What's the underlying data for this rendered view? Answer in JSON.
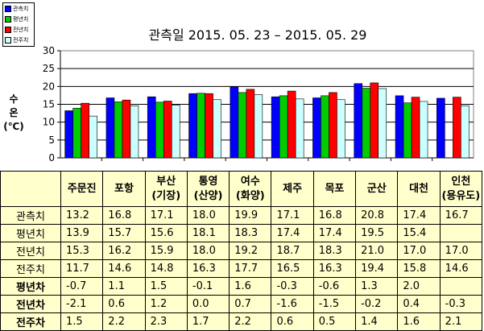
{
  "chart_data": {
    "type": "bar",
    "title": "관측일 2015. 05. 23 – 2015. 05. 29",
    "ylabel_lines": [
      "수",
      "온",
      "(℃)"
    ],
    "ylim": [
      0,
      30
    ],
    "yticks": [
      0,
      5,
      10,
      15,
      20,
      25,
      30
    ],
    "grid": true,
    "legend_position": "top-left",
    "categories": [
      [
        "주문진"
      ],
      [
        "포항"
      ],
      [
        "부산",
        "(기장)"
      ],
      [
        "통영",
        "(산양)"
      ],
      [
        "여수",
        "(화양)"
      ],
      [
        "제주"
      ],
      [
        "목포"
      ],
      [
        "군산"
      ],
      [
        "대천"
      ],
      [
        "인천",
        "(용유도)"
      ]
    ],
    "series": [
      {
        "name": "관측치",
        "color": "#0000ff",
        "values": [
          13.2,
          16.8,
          17.1,
          18.0,
          19.9,
          17.1,
          16.8,
          20.8,
          17.4,
          16.7
        ]
      },
      {
        "name": "평년치",
        "color": "#00cc00",
        "values": [
          13.9,
          15.7,
          15.6,
          18.1,
          18.3,
          17.4,
          17.4,
          19.5,
          15.4,
          null
        ]
      },
      {
        "name": "전년치",
        "color": "#ff0000",
        "values": [
          15.3,
          16.2,
          15.9,
          18.0,
          19.2,
          18.7,
          18.3,
          21.0,
          17.0,
          17.0
        ]
      },
      {
        "name": "전주치",
        "color": "#ccffff",
        "values": [
          11.7,
          14.6,
          14.8,
          16.3,
          17.7,
          16.5,
          16.3,
          19.4,
          15.8,
          14.6
        ]
      }
    ],
    "table": {
      "value_rows": [
        {
          "label": "관측치",
          "cells": [
            "13.2",
            "16.8",
            "17.1",
            "18.0",
            "19.9",
            "17.1",
            "16.8",
            "20.8",
            "17.4",
            "16.7"
          ]
        },
        {
          "label": "평년치",
          "cells": [
            "13.9",
            "15.7",
            "15.6",
            "18.1",
            "18.3",
            "17.4",
            "17.4",
            "19.5",
            "15.4",
            ""
          ]
        },
        {
          "label": "전년치",
          "cells": [
            "15.3",
            "16.2",
            "15.9",
            "18.0",
            "19.2",
            "18.7",
            "18.3",
            "21.0",
            "17.0",
            "17.0"
          ]
        },
        {
          "label": "전주치",
          "cells": [
            "11.7",
            "14.6",
            "14.8",
            "16.3",
            "17.7",
            "16.5",
            "16.3",
            "19.4",
            "15.8",
            "14.6"
          ]
        }
      ],
      "diff_rows": [
        {
          "label": "평년차",
          "cells": [
            "-0.7",
            "1.1",
            "1.5",
            "-0.1",
            "1.6",
            "-0.3",
            "-0.6",
            "1.3",
            "2.0",
            ""
          ]
        },
        {
          "label": "전년차",
          "cells": [
            "-2.1",
            "0.6",
            "1.2",
            "0.0",
            "0.7",
            "-1.6",
            "-1.5",
            "-0.2",
            "0.4",
            "-0.3"
          ]
        },
        {
          "label": "전주차",
          "cells": [
            "1.5",
            "2.2",
            "2.3",
            "1.7",
            "2.2",
            "0.6",
            "0.5",
            "1.4",
            "1.6",
            "2.1"
          ]
        }
      ]
    }
  }
}
